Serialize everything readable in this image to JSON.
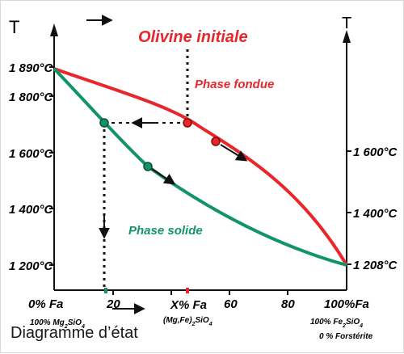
{
  "diagram": {
    "title": "Olivine initiale",
    "caption": "Diagramme d’état",
    "axis_left_symbol": "T",
    "axis_right_symbol": "T",
    "left_ticks": [
      "1 890°C",
      "1 800°C",
      "1 600°C",
      "1 400°C",
      "1 200°C"
    ],
    "right_ticks": [
      "1 600°C",
      "1 400°C",
      "1 208°C"
    ],
    "x_ticks": [
      "20",
      "X% Fa",
      "60",
      "80"
    ],
    "x_left_label": "0% Fa",
    "x_right_label": "100%Fa",
    "left_comp": {
      "main": "100% Mg",
      "sub1": "2",
      "mid": "SiO",
      "sub2": "4"
    },
    "middle_comp": {
      "main": "(Mg,Fe)",
      "sub1": "2",
      "mid": "SiO",
      "sub2": "4"
    },
    "right_comp": {
      "main": "100% Fe",
      "sub1": "2",
      "mid": "SiO",
      "sub2": "4"
    },
    "right_note": "0 % Forstérite",
    "liquidus_label": "Phase fondue",
    "solidus_label": "Phase solide",
    "colors": {
      "liquidus": "#e8262b",
      "solidus": "#12946b",
      "axis": "#111111",
      "dots_line": "#111111"
    }
  }
}
